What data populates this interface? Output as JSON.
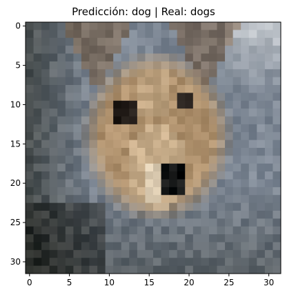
{
  "title": "Predicción: dog | Real: dogs",
  "image": {
    "grid_size": 32,
    "description_free": true
  },
  "axes": {
    "xlim": [
      -0.5,
      31.5
    ],
    "ylim": [
      31.5,
      -0.5
    ],
    "x_ticks": [
      0,
      5,
      10,
      15,
      20,
      25,
      30
    ],
    "y_ticks": [
      0,
      5,
      10,
      15,
      20,
      25,
      30
    ]
  }
}
